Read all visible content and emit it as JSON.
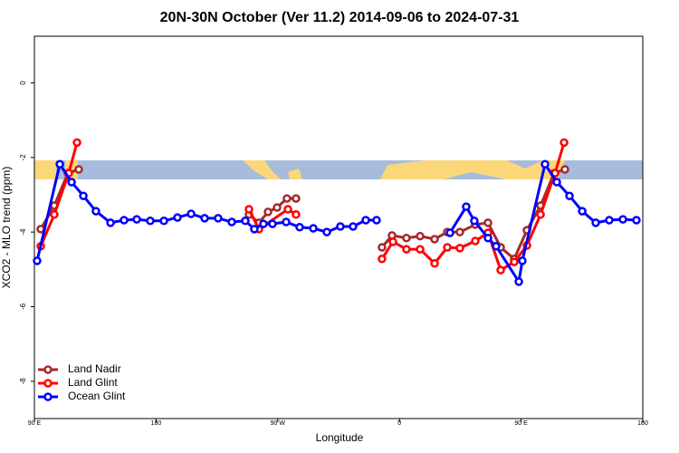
{
  "chart_data": {
    "type": "line",
    "title": "20N-30N October (Ver 11.2)   2014-09-06 to 2024-07-31",
    "xlabel": "Longitude",
    "ylabel": "XCO2 - MLO trend (ppm)",
    "xlim": [
      90,
      540
    ],
    "ylim": [
      -9,
      1.25
    ],
    "xticks": [
      {
        "value": 90,
        "label": "90 E"
      },
      180,
      {
        "value": 270,
        "label": "90 W"
      },
      {
        "value": 360,
        "label": "0"
      },
      {
        "value": 450,
        "label": "90 E"
      },
      {
        "value": 540,
        "label": "180"
      }
    ],
    "yticks": [
      0,
      -2,
      -4,
      -6,
      -8
    ],
    "legend": "bottom-left",
    "series": [
      {
        "name": "Land Nadir",
        "color": "#a52a2a",
        "x": [
          94.7,
          104.7,
          114.8,
          122.8,
          null,
          248.7,
          256.1,
          262.8,
          269.5,
          276.8,
          283.5,
          null,
          347.1,
          354.5,
          365.2,
          375.3,
          386.0,
          395.4,
          404.7,
          416.1,
          425.5,
          434.9,
          444.9,
          454.3,
          464.4,
          474.4,
          482.4
        ],
        "values": [
          -3.92,
          -3.29,
          -2.42,
          -2.32,
          null,
          -3.53,
          -3.75,
          -3.46,
          -3.34,
          -3.1,
          -3.1,
          null,
          -4.41,
          -4.09,
          -4.16,
          -4.11,
          -4.19,
          -4.0,
          -4.0,
          -3.8,
          -3.75,
          -4.41,
          -4.72,
          -3.95,
          -3.29,
          -2.42,
          -2.32
        ]
      },
      {
        "name": "Land Glint",
        "color": "#ff0000",
        "x": [
          94.7,
          104.7,
          115.4,
          121.5,
          null,
          248.7,
          256.1,
          277.5,
          283.5,
          null,
          347.1,
          355.2,
          365.2,
          375.3,
          386.0,
          395.4,
          404.7,
          416.1,
          425.5,
          434.9,
          444.9,
          454.3,
          464.4,
          475.1,
          481.8
        ],
        "values": [
          -4.38,
          -3.53,
          -2.42,
          -1.6,
          null,
          -3.39,
          -3.92,
          -3.39,
          -3.53,
          null,
          -4.72,
          -4.26,
          -4.46,
          -4.46,
          -4.84,
          -4.41,
          -4.43,
          -4.24,
          -4.02,
          -5.02,
          -4.8,
          -4.36,
          -3.53,
          -2.42,
          -1.6
        ]
      },
      {
        "name": "Ocean Glint",
        "color": "#0000ff",
        "x": [
          92.0,
          108.8,
          117.5,
          126.2,
          135.5,
          146.3,
          156.3,
          165.7,
          175.7,
          185.8,
          195.8,
          205.9,
          215.9,
          225.9,
          236.0,
          246.0,
          252.7,
          259.4,
          266.1,
          276.2,
          286.2,
          296.3,
          306.3,
          316.3,
          325.7,
          335.1,
          343.1,
          null,
          397.4,
          409.4,
          415.4,
          425.5,
          431.5,
          448.3,
          450.9,
          467.7,
          476.4,
          485.8,
          495.2,
          505.2,
          515.2,
          525.3,
          535.3
        ],
        "values": [
          -4.77,
          -2.18,
          -2.66,
          -3.03,
          -3.44,
          -3.75,
          -3.68,
          -3.66,
          -3.7,
          -3.7,
          -3.61,
          -3.51,
          -3.63,
          -3.63,
          -3.73,
          -3.7,
          -3.92,
          -3.78,
          -3.78,
          -3.73,
          -3.87,
          -3.9,
          -4.0,
          -3.85,
          -3.85,
          -3.68,
          -3.68,
          null,
          -4.02,
          -3.32,
          -3.7,
          -4.16,
          -4.38,
          -5.33,
          -4.77,
          -2.18,
          -2.66,
          -3.03,
          -3.44,
          -3.75,
          -3.68,
          -3.66,
          -3.68
        ]
      }
    ]
  }
}
